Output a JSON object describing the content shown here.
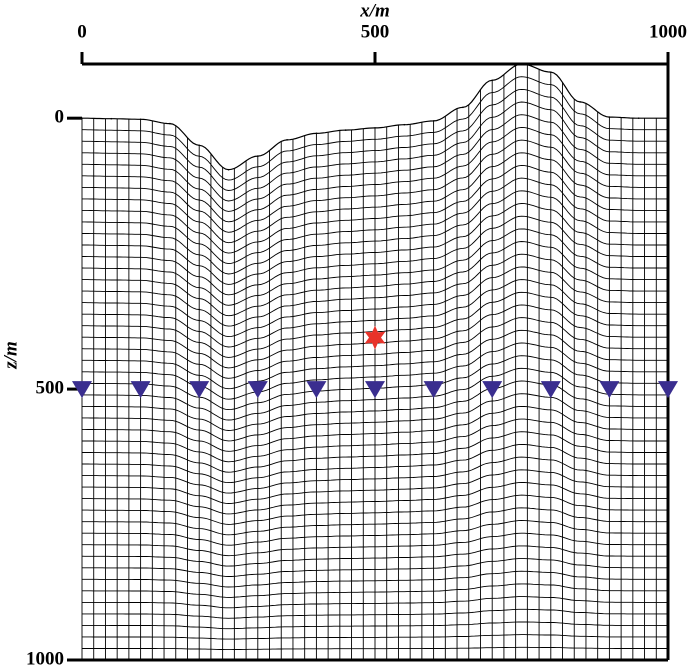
{
  "chart_data": {
    "type": "scatter",
    "x_label": "x/m",
    "y_label": "z/m",
    "xlim": [
      0,
      1000
    ],
    "xticks": [
      0,
      500,
      1000
    ],
    "ylim": [
      -100,
      1000
    ],
    "yticks": [
      0,
      500,
      1000
    ],
    "y_inverted": true,
    "surface": {
      "color": "#000000",
      "x": [
        0,
        50,
        100,
        150,
        200,
        250,
        300,
        350,
        400,
        450,
        500,
        550,
        600,
        650,
        700,
        750,
        800,
        850,
        900,
        950,
        1000
      ],
      "z": [
        0,
        1,
        2,
        10,
        50,
        95,
        70,
        40,
        28,
        22,
        18,
        12,
        5,
        -20,
        -70,
        -100,
        -85,
        -30,
        -2,
        0,
        0
      ]
    },
    "source": {
      "color": "#e8332a",
      "x": 500,
      "z": 405
    },
    "receivers": {
      "color": "#3a2e8f",
      "x": [
        0,
        100,
        200,
        300,
        400,
        500,
        600,
        700,
        800,
        900,
        1000
      ],
      "z": [
        500,
        500,
        500,
        500,
        500,
        500,
        500,
        500,
        500,
        500,
        500
      ]
    }
  }
}
